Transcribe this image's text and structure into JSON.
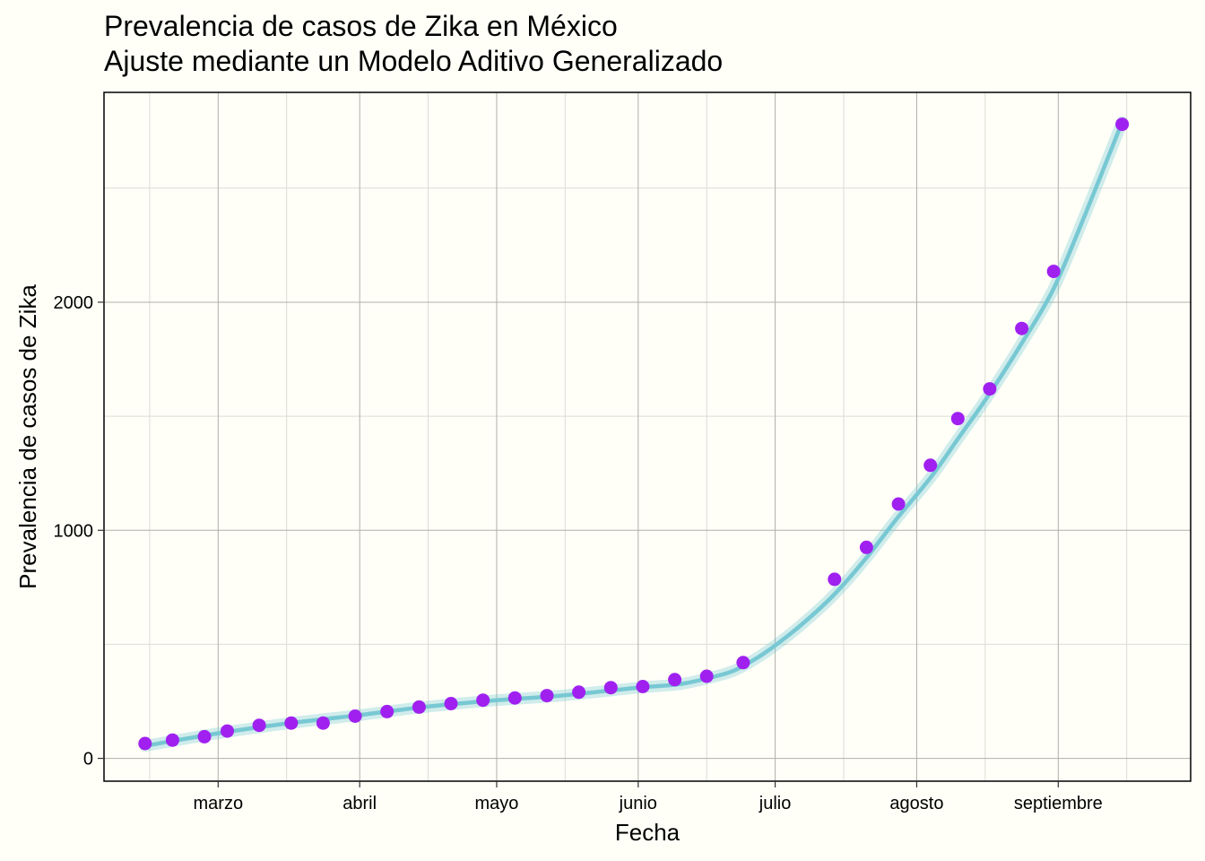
{
  "chart_data": {
    "type": "scatter",
    "title": "Prevalencia de casos de Zika en México",
    "subtitle": "Ajuste mediante un Modelo Aditivo Generalizado",
    "xlabel": "Fecha",
    "ylabel": "Prevalencia de casos de Zika",
    "x_tick_labels": [
      "marzo",
      "abril",
      "mayo",
      "junio",
      "julio",
      "agosto",
      "septiembre"
    ],
    "x_tick_dates": [
      "2016-03-01",
      "2016-04-01",
      "2016-05-01",
      "2016-06-01",
      "2016-07-01",
      "2016-08-01",
      "2016-09-01"
    ],
    "y_ticks": [
      0,
      1000,
      2000
    ],
    "xlim": [
      "2016-02-05",
      "2016-09-30"
    ],
    "ylim": [
      -100,
      2920
    ],
    "grid": true,
    "series": [
      {
        "type": "points",
        "x": [
          "2016-02-14",
          "2016-02-20",
          "2016-02-27",
          "2016-03-03",
          "2016-03-10",
          "2016-03-17",
          "2016-03-24",
          "2016-03-31",
          "2016-04-07",
          "2016-04-14",
          "2016-04-21",
          "2016-04-28",
          "2016-05-05",
          "2016-05-12",
          "2016-05-19",
          "2016-05-26",
          "2016-06-02",
          "2016-06-09",
          "2016-06-16",
          "2016-06-24",
          "2016-07-14",
          "2016-07-21",
          "2016-07-28",
          "2016-08-04",
          "2016-08-10",
          "2016-08-17",
          "2016-08-24",
          "2016-08-31",
          "2016-09-15"
        ],
        "y": [
          65,
          80,
          95,
          120,
          145,
          155,
          155,
          185,
          205,
          225,
          240,
          255,
          265,
          275,
          290,
          310,
          315,
          345,
          360,
          420,
          785,
          925,
          1115,
          1285,
          1490,
          1620,
          1885,
          2135,
          2780
        ],
        "color": "#a020f0"
      },
      {
        "type": "smooth",
        "x": [
          "2016-02-14",
          "2016-03-01",
          "2016-03-15",
          "2016-04-01",
          "2016-04-15",
          "2016-05-01",
          "2016-05-15",
          "2016-06-01",
          "2016-06-10",
          "2016-06-17",
          "2016-06-22",
          "2016-06-27",
          "2016-07-01",
          "2016-07-07",
          "2016-07-14",
          "2016-07-21",
          "2016-07-28",
          "2016-08-04",
          "2016-08-10",
          "2016-08-17",
          "2016-08-24",
          "2016-08-31",
          "2016-09-07",
          "2016-09-15"
        ],
        "y": [
          55,
          110,
          150,
          190,
          225,
          255,
          275,
          310,
          325,
          355,
          385,
          440,
          495,
          590,
          720,
          880,
          1060,
          1230,
          1400,
          1600,
          1820,
          2060,
          2390,
          2790
        ],
        "color": "#77c8d3"
      }
    ]
  }
}
